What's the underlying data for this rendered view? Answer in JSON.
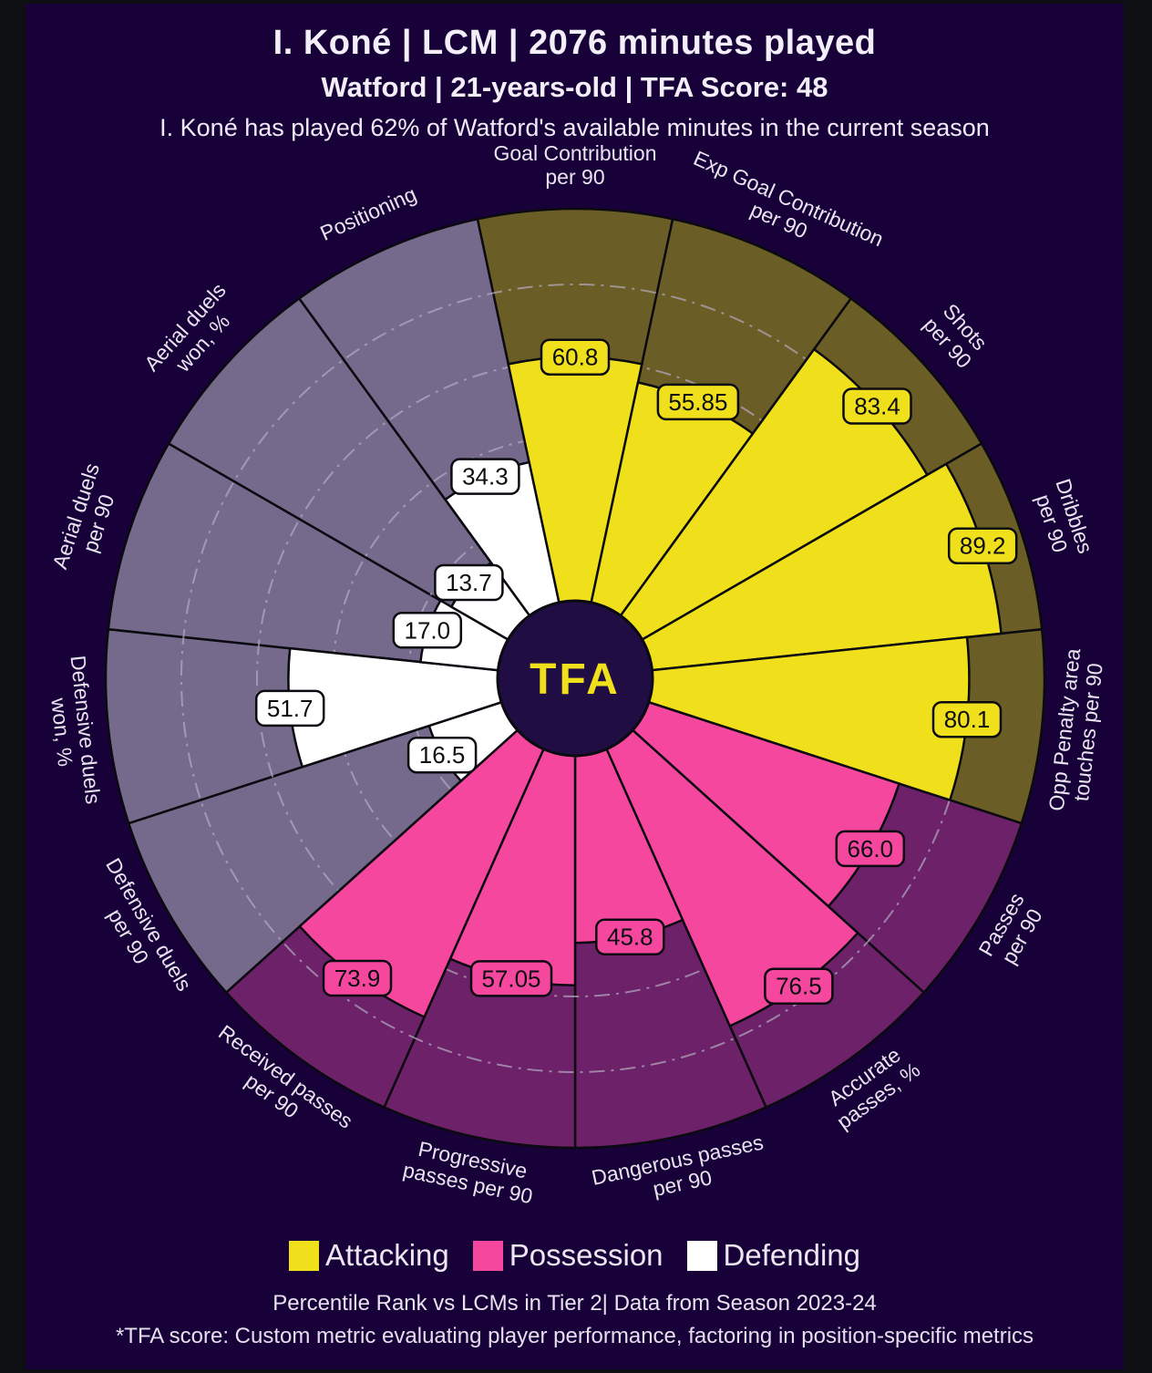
{
  "header": {
    "title": "I. Koné | LCM | 2076 minutes played",
    "subtitle": "Watford | 21-years-old | TFA Score: 48",
    "description": "I. Koné has played 62% of Watford's available minutes in the current season"
  },
  "center_logo": "TFA",
  "chart_data": {
    "type": "radial_bar",
    "title": "Percentile pizza chart",
    "unit": "percentile rank",
    "rlim": [
      0,
      100
    ],
    "grid_ticks": [
      20,
      40,
      60,
      80
    ],
    "grid_style": "dash-dot",
    "groups": [
      {
        "name": "Attacking",
        "color": "#f0e01c",
        "bg_color": "#6b5d26"
      },
      {
        "name": "Possession",
        "color": "#f5479e",
        "bg_color": "#6c2168"
      },
      {
        "name": "Defending",
        "color": "#ffffff",
        "bg_color": "#756a8c"
      }
    ],
    "slices": [
      {
        "label": [
          "Goal Contribution",
          "per 90"
        ],
        "value": 60.8,
        "value_text": "60.8",
        "group": "Attacking"
      },
      {
        "label": [
          "Exp Goal Contribution",
          "per 90"
        ],
        "value": 55.85,
        "value_text": "55.85",
        "group": "Attacking"
      },
      {
        "label": [
          "Shots",
          "per 90"
        ],
        "value": 83.4,
        "value_text": "83.4",
        "group": "Attacking"
      },
      {
        "label": [
          "Dribbles",
          "per 90"
        ],
        "value": 89.2,
        "value_text": "89.2",
        "group": "Attacking"
      },
      {
        "label": [
          "Opp Penalty area",
          "touches per 90"
        ],
        "value": 80.1,
        "value_text": "80.1",
        "group": "Attacking"
      },
      {
        "label": [
          "Passes",
          "per 90"
        ],
        "value": 66.0,
        "value_text": "66.0",
        "group": "Possession"
      },
      {
        "label": [
          "Accurate",
          "passes, %"
        ],
        "value": 76.5,
        "value_text": "76.5",
        "group": "Possession"
      },
      {
        "label": [
          "Dangerous passes",
          "per 90"
        ],
        "value": 45.8,
        "value_text": "45.8",
        "group": "Possession"
      },
      {
        "label": [
          "Progressive",
          "passes per 90"
        ],
        "value": 57.05,
        "value_text": "57.05",
        "group": "Possession"
      },
      {
        "label": [
          "Received passes",
          "per 90"
        ],
        "value": 73.9,
        "value_text": "73.9",
        "group": "Possession"
      },
      {
        "label": [
          "Defensive duels",
          "per 90"
        ],
        "value": 16.5,
        "value_text": "16.5",
        "group": "Defending"
      },
      {
        "label": [
          "Defensive duels",
          "won, %"
        ],
        "value": 51.7,
        "value_text": "51.7",
        "group": "Defending"
      },
      {
        "label": [
          "Aerial duels",
          "per 90"
        ],
        "value": 17.0,
        "value_text": "17.0",
        "group": "Defending"
      },
      {
        "label": [
          "Aerial duels",
          "won, %"
        ],
        "value": 13.7,
        "value_text": "13.7",
        "group": "Defending"
      },
      {
        "label": [
          "Positioning"
        ],
        "value": 34.3,
        "value_text": "34.3",
        "group": "Defending"
      }
    ]
  },
  "legend": {
    "items": [
      "Attacking",
      "Possession",
      "Defending"
    ]
  },
  "footer": {
    "note": "Percentile Rank vs LCMs in Tier 2| Data from Season 2023-24",
    "footnote": "*TFA score: Custom metric evaluating player performance, factoring in position-specific metrics"
  },
  "colors": {
    "frame": "#0e0f13",
    "canvas_bg": "#170138",
    "center_circle": "#200d43",
    "logo_text": "#f0e01c",
    "grid": "#b3aec2",
    "stroke": "#0a0a10",
    "slice_label_text": "#e9e4f1",
    "value_label_text": "#0d0d12",
    "heading_text": "#f3eff9"
  }
}
